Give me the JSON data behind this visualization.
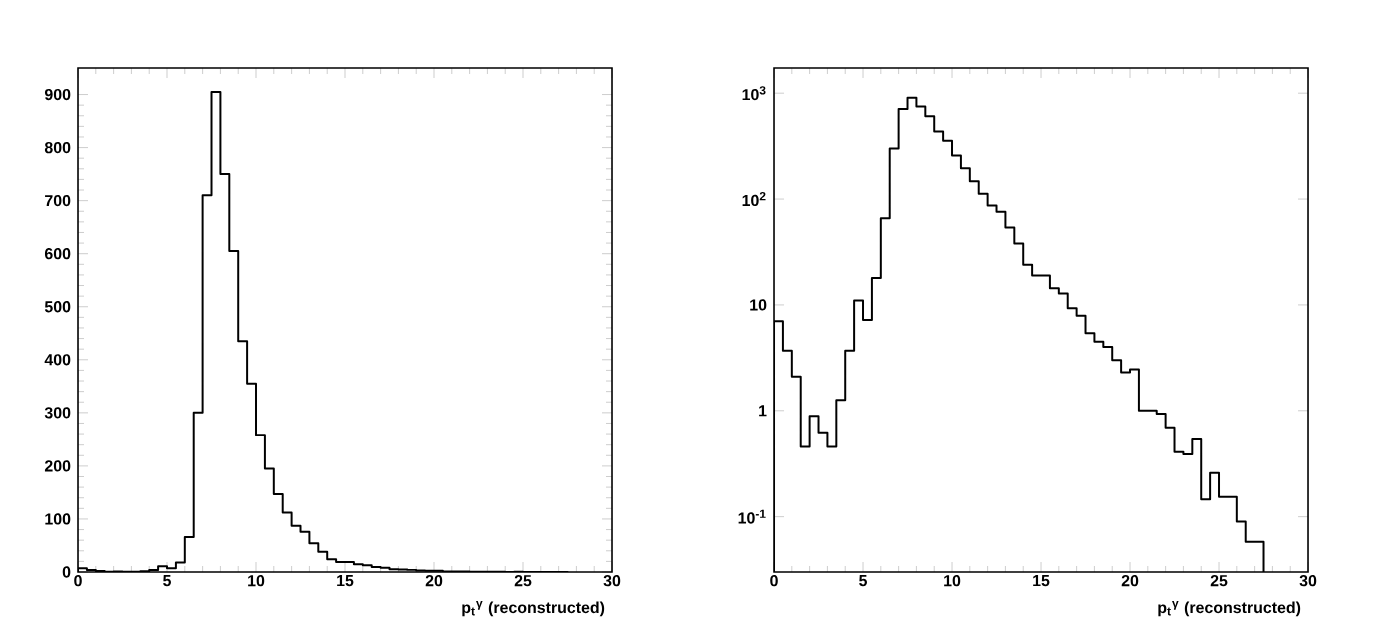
{
  "chart_data": [
    {
      "type": "histogram",
      "xlabel": "p$_{t}$$^{γ}$ (reconstructed)",
      "color": "#000000",
      "bins": [
        0,
        0.5,
        1,
        1.5,
        2,
        2.5,
        3,
        3.5,
        4,
        4.5,
        5,
        5.5,
        6,
        6.5,
        7,
        7.5,
        8,
        8.5,
        9,
        9.5,
        10,
        10.5,
        11,
        11.5,
        12,
        12.5,
        13,
        13.5,
        14,
        14.5,
        15,
        15.5,
        16,
        16.5,
        17,
        17.5,
        18,
        18.5,
        19,
        19.5,
        20,
        20.5,
        21,
        21.5,
        22,
        22.5,
        23,
        23.5,
        24,
        24.5,
        25,
        25.5,
        26,
        26.5,
        27,
        27.5
      ],
      "values": [
        7,
        3.7,
        2.1,
        0.46,
        0.89,
        0.62,
        0.46,
        1.26,
        3.7,
        11,
        7.2,
        18,
        66,
        300,
        710,
        905,
        750,
        605,
        435,
        355,
        258,
        195,
        147,
        112,
        87,
        76,
        54,
        38,
        24,
        19,
        19,
        14.4,
        12.8,
        9.3,
        7.9,
        5.4,
        4.5,
        4,
        3,
        2.3,
        2.45,
        1,
        1,
        0.93,
        0.69,
        0.41,
        0.39,
        0.54,
        0.146,
        0.26,
        0.154,
        0.154,
        0.09,
        0.058,
        0.058
      ],
      "xlim": [
        0,
        30
      ],
      "ylim": [
        0,
        950
      ],
      "xticks": [
        0,
        5,
        10,
        15,
        20,
        25,
        30
      ],
      "yticks": [
        0,
        100,
        200,
        300,
        400,
        500,
        600,
        700,
        800,
        900
      ],
      "grid": false
    },
    {
      "type": "histogram",
      "xlabel": "p$_{t}$$^{γ}$ (reconstructed)",
      "color": "#000000",
      "log": "y",
      "bins": [
        0,
        0.5,
        1,
        1.5,
        2,
        2.5,
        3,
        3.5,
        4,
        4.5,
        5,
        5.5,
        6,
        6.5,
        7,
        7.5,
        8,
        8.5,
        9,
        9.5,
        10,
        10.5,
        11,
        11.5,
        12,
        12.5,
        13,
        13.5,
        14,
        14.5,
        15,
        15.5,
        16,
        16.5,
        17,
        17.5,
        18,
        18.5,
        19,
        19.5,
        20,
        20.5,
        21,
        21.5,
        22,
        22.5,
        23,
        23.5,
        24,
        24.5,
        25,
        25.5,
        26,
        26.5,
        27,
        27.5
      ],
      "values": [
        7,
        3.7,
        2.1,
        0.46,
        0.89,
        0.62,
        0.46,
        1.26,
        3.7,
        11,
        7.2,
        18,
        66,
        300,
        710,
        905,
        750,
        605,
        435,
        355,
        258,
        195,
        147,
        112,
        87,
        76,
        54,
        38,
        24,
        19,
        19,
        14.4,
        12.8,
        9.3,
        7.9,
        5.4,
        4.5,
        4,
        3,
        2.3,
        2.45,
        1,
        1,
        0.93,
        0.69,
        0.41,
        0.39,
        0.54,
        0.146,
        0.26,
        0.154,
        0.154,
        0.09,
        0.058,
        0.058
      ],
      "xlim": [
        0,
        30
      ],
      "ylim": [
        0.03,
        1730
      ],
      "xticks": [
        0,
        5,
        10,
        15,
        20,
        25,
        30
      ],
      "yticks": [
        {
          "value": 0.1,
          "label": "10$^{-1}$"
        },
        1,
        10,
        {
          "value": 100,
          "label": "10$^{2}$"
        },
        {
          "value": 1000,
          "label": "10$^{3}$"
        }
      ],
      "grid": false
    }
  ]
}
